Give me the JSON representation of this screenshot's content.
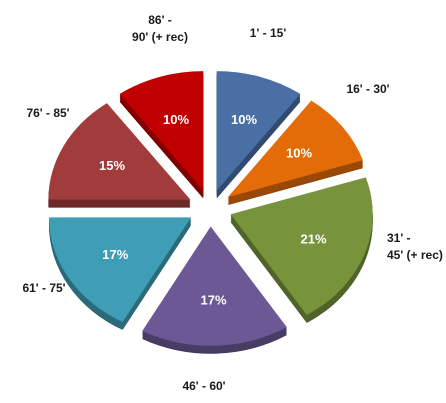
{
  "chart_data": {
    "type": "pie",
    "exploded": true,
    "style": "3d",
    "title": "",
    "slices": [
      {
        "label": "1' - 15'",
        "value": 10,
        "display": "10%",
        "color": "#4a6fa5"
      },
      {
        "label": "16' - 30'",
        "value": 10,
        "display": "10%",
        "color": "#e36c09"
      },
      {
        "label": "31' - 45' (+ rec)",
        "label_lines": [
          "31' -",
          "45' (+ rec)"
        ],
        "value": 21,
        "display": "21%",
        "color": "#77933c"
      },
      {
        "label": "46' - 60'",
        "value": 17,
        "display": "17%",
        "color": "#6b5895"
      },
      {
        "label": "61' - 75'",
        "value": 17,
        "display": "17%",
        "color": "#3f9db5"
      },
      {
        "label": "76' - 85'",
        "value": 15,
        "display": "15%",
        "color": "#a23b3b"
      },
      {
        "label": "86' - 90' (+ rec)",
        "label_lines": [
          "86' -",
          "90' (+ rec)"
        ],
        "value": 10,
        "display": "10%",
        "color": "#c00000"
      }
    ]
  }
}
